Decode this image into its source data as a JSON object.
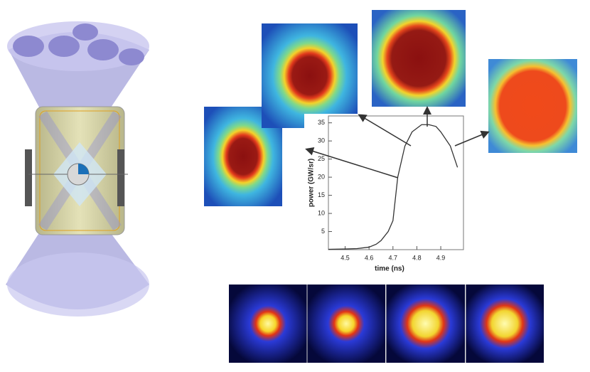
{
  "chart_data": {
    "type": "line",
    "x_label": "time (ns)",
    "y_label": "power (GW/sr)",
    "series": [
      {
        "name": "power",
        "color": "#333333",
        "x": [
          4.43,
          4.5,
          4.55,
          4.6,
          4.63,
          4.65,
          4.68,
          4.7,
          4.72,
          4.75,
          4.78,
          4.82,
          4.85,
          4.88,
          4.9,
          4.94,
          4.97
        ],
        "values": [
          0.1,
          0.2,
          0.3,
          0.7,
          1.5,
          2.5,
          5,
          8,
          20,
          28.6,
          32.5,
          34.5,
          34.5,
          34,
          32.5,
          28.6,
          22.7
        ]
      }
    ],
    "xlim": [
      4.43,
      4.995
    ],
    "xticks": [
      4.5,
      4.6,
      4.7,
      4.8,
      4.9
    ],
    "ylim": [
      0,
      36.9
    ],
    "yticks": [
      5,
      10,
      15,
      20,
      25,
      30,
      35
    ]
  }
}
